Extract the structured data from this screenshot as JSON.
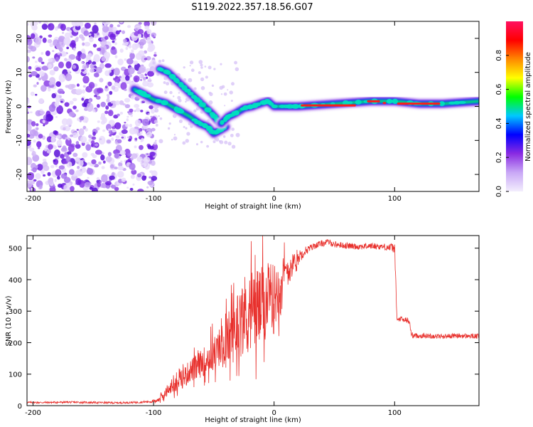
{
  "title": "S119.2022.357.18.56.G07",
  "chart_data": [
    {
      "type": "heatmap",
      "title": "S119.2022.357.18.56.G07",
      "xlabel": "Height of straight line (km)",
      "ylabel": "Frequency (Hz)",
      "xlim": [
        -205,
        170
      ],
      "ylim": [
        -25,
        25
      ],
      "x_ticks": [
        -200,
        -100,
        0,
        100
      ],
      "y_ticks": [
        -20,
        -10,
        0,
        10,
        20
      ],
      "grid": false,
      "noise_region_x": [
        -205,
        -103
      ],
      "spectral_tracks": [
        {
          "x": [
            -116,
            -110,
            -100,
            -90,
            -80,
            -70,
            -62,
            -55,
            -50,
            -45,
            -40
          ],
          "y": [
            5,
            4,
            2,
            1,
            -1,
            -3,
            -5,
            -6,
            -8,
            -7,
            -6
          ]
        },
        {
          "x": [
            -95,
            -88,
            -82,
            -76,
            -70,
            -64,
            -58,
            -52,
            -47,
            -44
          ],
          "y": [
            11,
            10,
            8,
            6,
            4,
            2,
            0,
            -2,
            -4,
            -5
          ]
        },
        {
          "x": [
            -44,
            -38,
            -32,
            -25,
            -18,
            -10,
            -5,
            0,
            10,
            20,
            40,
            60,
            80,
            100,
            120,
            140,
            170
          ],
          "y": [
            -5,
            -3,
            -2,
            -0.5,
            0,
            1,
            1.5,
            0,
            0,
            0,
            0.5,
            1,
            1.5,
            1.5,
            0.8,
            0.8,
            1.5
          ]
        }
      ],
      "colorbar": {
        "label": "Normalized spectral amplitude",
        "range": [
          0.0,
          1.0
        ],
        "ticks": [
          0.0,
          0.2,
          0.4,
          0.6,
          0.8
        ],
        "tick_labels": [
          "0.0",
          "0.2",
          "0.4",
          "0.6",
          "0.8"
        ],
        "colors": [
          "#f3eefd",
          "#c9a8f6",
          "#8a2be2",
          "#0000ff",
          "#00c8ff",
          "#00ff00",
          "#ffff00",
          "#ff8800",
          "#ff0000",
          "#ff1060"
        ]
      }
    },
    {
      "type": "line",
      "xlabel": "Height of straight line (km)",
      "ylabel": "SNR (10 * v/v)",
      "xlim": [
        -205,
        170
      ],
      "ylim": [
        0,
        540
      ],
      "x_ticks": [
        -200,
        -100,
        0,
        100
      ],
      "y_ticks": [
        0,
        100,
        200,
        300,
        400,
        500
      ],
      "grid": false,
      "color": "#e8302c",
      "x": [
        -205,
        -190,
        -170,
        -150,
        -130,
        -110,
        -100,
        -95,
        -90,
        -85,
        -80,
        -75,
        -70,
        -65,
        -60,
        -55,
        -50,
        -45,
        -40,
        -35,
        -30,
        -25,
        -20,
        -15,
        -10,
        -5,
        0,
        5,
        10,
        15,
        20,
        25,
        30,
        35,
        40,
        45,
        50,
        60,
        70,
        80,
        90,
        100,
        102,
        104,
        108,
        112,
        114,
        116,
        120,
        130,
        140,
        150,
        160,
        170
      ],
      "values": [
        10,
        10,
        11,
        10,
        9,
        11,
        14,
        20,
        40,
        60,
        70,
        90,
        110,
        120,
        135,
        150,
        165,
        180,
        200,
        230,
        260,
        290,
        300,
        310,
        320,
        330,
        340,
        400,
        420,
        450,
        470,
        490,
        500,
        510,
        515,
        520,
        512,
        508,
        505,
        507,
        505,
        500,
        270,
        275,
        272,
        270,
        225,
        222,
        222,
        221,
        220,
        222,
        221,
        220
      ],
      "spread": [
        3,
        3,
        3,
        3,
        3,
        3,
        5,
        10,
        15,
        25,
        35,
        40,
        45,
        50,
        55,
        60,
        70,
        80,
        100,
        120,
        140,
        160,
        170,
        160,
        150,
        140,
        140,
        100,
        60,
        40,
        25,
        15,
        12,
        10,
        10,
        10,
        10,
        10,
        10,
        10,
        10,
        15,
        10,
        10,
        10,
        10,
        10,
        8,
        8,
        8,
        8,
        8,
        8,
        8
      ]
    }
  ]
}
